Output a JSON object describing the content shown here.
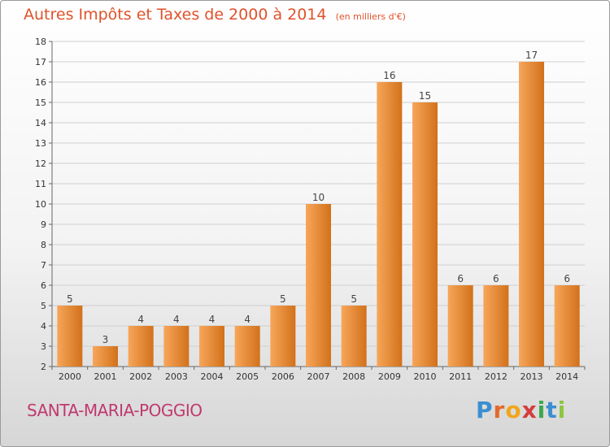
{
  "title": "Autres Impôts et Taxes de 2000 à 2014",
  "unit": "(en milliers d'€)",
  "commune": "SANTA-MARIA-POGGIO",
  "logo": {
    "text": "Proxiti",
    "letters": [
      {
        "ch": "P",
        "color": "#3a8fd0"
      },
      {
        "ch": "r",
        "color": "#e26a2c"
      },
      {
        "ch": "o",
        "color": "#f1a51c"
      },
      {
        "ch": "x",
        "color": "#d43d3d"
      },
      {
        "ch": "i",
        "color": "#3aa84b"
      },
      {
        "ch": "t",
        "color": "#3a8fd0"
      },
      {
        "ch": "i",
        "color": "#8cc63f"
      }
    ]
  },
  "colors": {
    "title": "#e0522b",
    "commune": "#c0396e",
    "bar_light": "#f7a65a",
    "bar_dark": "#d2711b",
    "grid": "#cfcfcf"
  },
  "chart_data": {
    "type": "bar",
    "categories": [
      "2000",
      "2001",
      "2002",
      "2003",
      "2004",
      "2005",
      "2006",
      "2007",
      "2008",
      "2009",
      "2010",
      "2011",
      "2012",
      "2013",
      "2014"
    ],
    "values": [
      5,
      3,
      4,
      4,
      4,
      4,
      5,
      10,
      5,
      16,
      15,
      6,
      6,
      17,
      6
    ],
    "ylim": [
      2,
      18
    ],
    "yticks": [
      2,
      3,
      4,
      5,
      6,
      7,
      8,
      9,
      10,
      11,
      12,
      13,
      14,
      15,
      16,
      17,
      18
    ],
    "grid": true,
    "data_labels": true
  }
}
